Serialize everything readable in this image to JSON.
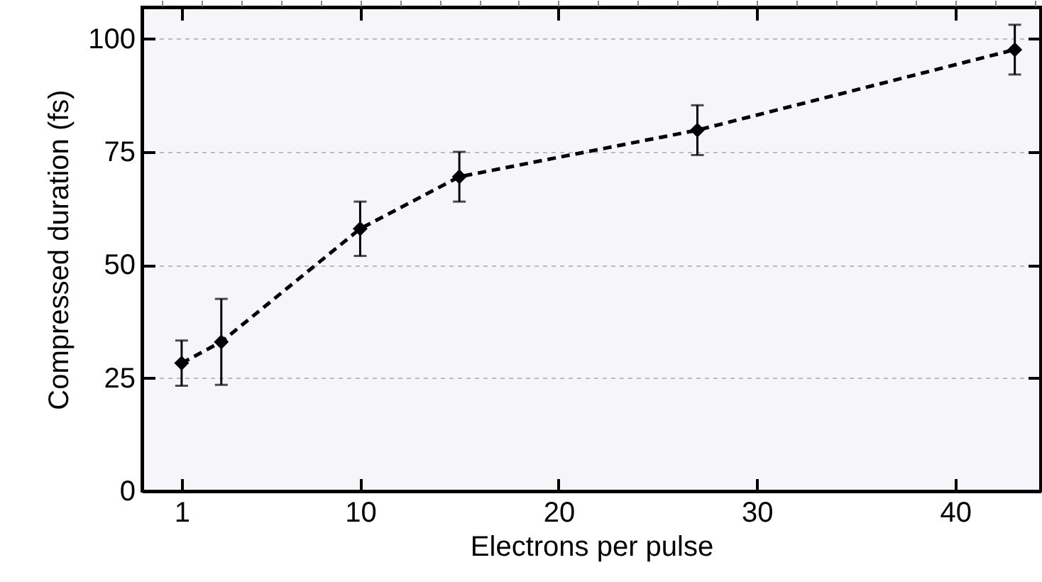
{
  "chart_data": {
    "type": "line",
    "xlabel": "Electrons per pulse",
    "ylabel": "Compressed duration (fs)",
    "x": [
      1,
      3,
      10,
      15,
      27,
      43
    ],
    "series": [
      {
        "color": "#000000",
        "values": [
          28.3,
          33,
          58,
          69.5,
          79.8,
          97.6
        ],
        "errors": [
          5,
          9.5,
          6,
          5.5,
          5.5,
          5.5
        ]
      }
    ],
    "xlim": [
      -1,
      44.3
    ],
    "ylim": [
      0,
      107
    ],
    "xticks": [
      1,
      10,
      20,
      30,
      40
    ],
    "yticks": [
      0,
      25,
      50,
      75,
      100
    ],
    "grid": "y",
    "marker": "diamond",
    "line_style": "dashed"
  }
}
